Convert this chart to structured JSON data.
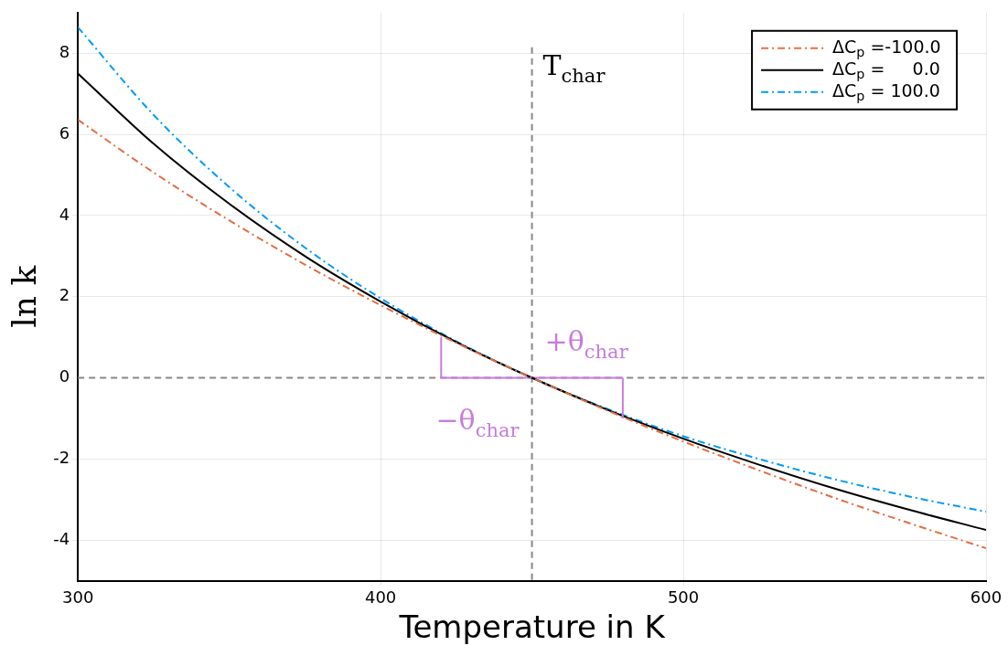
{
  "chart_data": {
    "type": "line",
    "xlabel": "Temperature in K",
    "ylabel": "ln k",
    "x": [
      300,
      325,
      350,
      375,
      400,
      425,
      450,
      475,
      500,
      525,
      550,
      575,
      600
    ],
    "series": [
      {
        "name": "ΔC$_{p}$ =-100.0",
        "color": "#e26f46",
        "line_style": "dashed",
        "values": [
          6.36,
          5.06,
          3.88,
          2.79,
          1.79,
          0.86,
          0,
          -0.81,
          -1.57,
          -2.28,
          -2.96,
          -3.59,
          -4.2
        ]
      },
      {
        "name": "ΔC$_{p}$ =     0.0",
        "color": "#000000",
        "line_style": "solid",
        "values": [
          7.5,
          5.77,
          4.29,
          3.0,
          1.88,
          0.88,
          0,
          -0.79,
          -1.5,
          -2.14,
          -2.73,
          -3.26,
          -3.75
        ]
      },
      {
        "name": "ΔC$_{p}$ = 100.0",
        "color": "#009af9",
        "line_style": "dashed",
        "values": [
          8.64,
          6.48,
          4.7,
          3.21,
          1.96,
          0.9,
          0,
          -0.77,
          -1.44,
          -2.0,
          -2.5,
          -2.93,
          -3.3
        ]
      },
      {
        "color": "#c77cdb",
        "line_style": "solid",
        "x": [
          420,
          480
        ],
        "values": [
          0,
          0
        ],
        "errors": [
          [
            0,
            1.0
          ],
          [
            -1.0,
            0
          ]
        ]
      }
    ],
    "xlim": [
      300,
      600
    ],
    "xticks": [
      300,
      400,
      500,
      600
    ],
    "ylim": [
      -5,
      9
    ],
    "yticks": [
      -4,
      -2,
      0,
      2,
      4,
      6,
      8
    ],
    "ref_lines": [
      {
        "axis": "x",
        "value": 450,
        "label": "T$_{char}$",
        "color": "#888888",
        "line_style": "dashed"
      },
      {
        "axis": "y",
        "value": 0,
        "color": "#888888",
        "line_style": "dashed"
      }
    ],
    "annotations": [
      "+θ$_{char}$",
      "−θ$_{char}$"
    ],
    "grid": true,
    "legend": "top right",
    "marker": "none"
  }
}
